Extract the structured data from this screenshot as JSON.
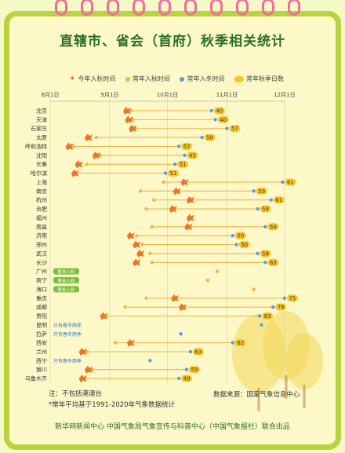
{
  "title": "直辖市、省会（首府）秋季相关统计",
  "legend": {
    "current_entry": "今年入秋时间",
    "normal_entry": "常年入秋时间",
    "normal_winter": "常年入冬时间",
    "normal_days": "常年秋季日数"
  },
  "colors": {
    "background": "#fdf8c8",
    "frame": "#b9d33f",
    "ring": "#f26d9a",
    "title": "#2a6e2c",
    "normal_line": "#f3b44a",
    "winter_line": "#5b9be0",
    "badge": "#f7c52e",
    "leaf": "#e8782a",
    "green_tag": "#7bbf3a"
  },
  "chart_data": {
    "type": "dumbbell",
    "x_ticks": [
      "8月1日",
      "9月1日",
      "10月1日",
      "11月1日",
      "12月1日"
    ],
    "x_tick_days": [
      0,
      31,
      61,
      92,
      122
    ],
    "x_unit": "days since 8月1日",
    "cities": [
      {
        "name": "北京",
        "current": 40,
        "normal": 42,
        "winter": 84,
        "days": "40"
      },
      {
        "name": "天津",
        "current": 41,
        "normal": 43,
        "winter": 86,
        "days": "40"
      },
      {
        "name": "石家庄",
        "current": 43,
        "normal": 44,
        "winter": 92,
        "days": "57"
      },
      {
        "name": "太原",
        "current": 20,
        "normal": 24,
        "winter": 79,
        "days": "58"
      },
      {
        "name": "呼和浩特",
        "current": 10,
        "normal": 12,
        "winter": 67,
        "days": "57"
      },
      {
        "name": "沈阳",
        "current": 24,
        "normal": 26,
        "winter": 70,
        "days": "45"
      },
      {
        "name": "长春",
        "current": 15,
        "normal": 19,
        "winter": 65,
        "days": "51"
      },
      {
        "name": "哈尔滨",
        "current": 13,
        "normal": 13,
        "winter": 60,
        "days": "51"
      },
      {
        "name": "上海",
        "current": 70,
        "normal": 59,
        "winter": 121,
        "days": "61"
      },
      {
        "name": "南京",
        "current": 66,
        "normal": 47,
        "winter": 106,
        "days": "59"
      },
      {
        "name": "杭州",
        "current": 73,
        "normal": 54,
        "winter": 115,
        "days": "61"
      },
      {
        "name": "合肥",
        "current": 64,
        "normal": 50,
        "winter": 108,
        "days": "58"
      },
      {
        "name": "福州",
        "current": 73,
        "normal": null,
        "winter": null,
        "days": ""
      },
      {
        "name": "南昌",
        "current": 72,
        "normal": 53,
        "winter": 112,
        "days": "59"
      },
      {
        "name": "济南",
        "current": 42,
        "normal": 45,
        "winter": 95,
        "days": "50"
      },
      {
        "name": "郑州",
        "current": 45,
        "normal": 48,
        "winter": 97,
        "days": "50"
      },
      {
        "name": "武汉",
        "current": 47,
        "normal": 52,
        "winter": 108,
        "days": "58"
      },
      {
        "name": "长沙",
        "current": 45,
        "normal": 53,
        "winter": 112,
        "days": "63"
      },
      {
        "name": "广州",
        "current": null,
        "normal": 87,
        "winter": null,
        "days": "",
        "tag": "暂未入秋"
      },
      {
        "name": "南宁",
        "current": null,
        "normal": 82,
        "winter": null,
        "days": "",
        "tag": "暂未入秋"
      },
      {
        "name": "海口",
        "current": null,
        "normal": 106,
        "winter": null,
        "days": "",
        "tag": "暂未入秋"
      },
      {
        "name": "重庆",
        "current": 65,
        "normal": 50,
        "winter": 122,
        "days": "75"
      },
      {
        "name": "成都",
        "current": 69,
        "normal": 39,
        "winter": 116,
        "days": "78"
      },
      {
        "name": "贵阳",
        "current": 28,
        "normal": 27,
        "winter": 109,
        "days": "83"
      },
      {
        "name": "昆明",
        "current": null,
        "normal": null,
        "winter": 110,
        "days": "",
        "tag": "只有春冬两季"
      },
      {
        "name": "拉萨",
        "current": null,
        "normal": null,
        "winter": 68,
        "days": "",
        "tag": "只有春冬两季"
      },
      {
        "name": "西安",
        "current": 42,
        "normal": 34,
        "winter": 95,
        "days": "62"
      },
      {
        "name": "兰州",
        "current": 17,
        "normal": 19,
        "winter": 73,
        "days": "63"
      },
      {
        "name": "西宁",
        "current": null,
        "normal": null,
        "winter": 52,
        "days": "",
        "tag": "只有春冬两季"
      },
      {
        "name": "银川",
        "current": 20,
        "normal": 22,
        "winter": 71,
        "days": "59"
      },
      {
        "name": "乌鲁木齐",
        "current": 17,
        "normal": 18,
        "winter": 67,
        "days": "49"
      }
    ]
  },
  "footnote1": "注：不包括港澳台",
  "footnote2": "*常年平均基于1991-2020年气象数据统计",
  "source": "数据来源：国家气象信息中心",
  "credit": "新华网新闻中心 中国气象局气象宣传与科普中心（中国气象报社）联合出品"
}
